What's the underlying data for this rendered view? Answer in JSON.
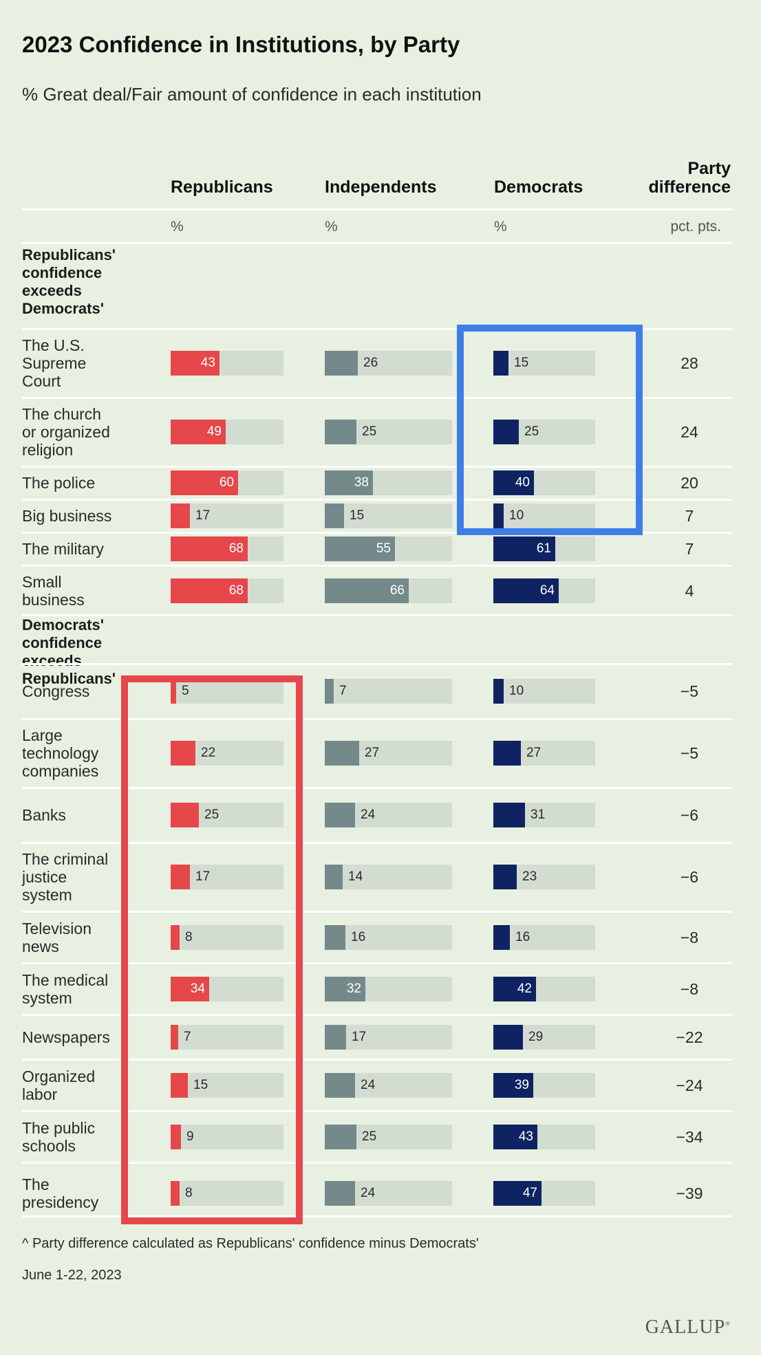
{
  "colors": {
    "background": "#e8f0e2",
    "republicans": "#e5474b",
    "independents": "#74898a",
    "democrats": "#0f2362",
    "track": "#d3dcd1",
    "highlight_blue": "#3f7de8",
    "highlight_red": "#e5474b"
  },
  "chart_data": {
    "type": "bar",
    "title": "2023 Confidence in Institutions, by Party",
    "subtitle": "% Great deal/Fair amount of confidence in each institution",
    "columns": [
      {
        "label": "Republicans",
        "unit": "%"
      },
      {
        "label": "Independents",
        "unit": "%"
      },
      {
        "label": "Democrats",
        "unit": "%"
      },
      {
        "label": "Party difference",
        "unit": "pct. pts."
      }
    ],
    "xlim": [
      0,
      100
    ],
    "sections": [
      {
        "heading": "Republicans'\nconfidence\nexceeds\nDemocrats'",
        "rows": [
          {
            "label": "The U.S.\nSupreme\nCourt",
            "republicans": 43,
            "independents": 26,
            "democrats": 15,
            "difference": "28"
          },
          {
            "label": "The church\nor organized\nreligion",
            "republicans": 49,
            "independents": 25,
            "democrats": 25,
            "difference": "24"
          },
          {
            "label": "The police",
            "republicans": 60,
            "independents": 38,
            "democrats": 40,
            "difference": "20"
          },
          {
            "label": "Big business",
            "republicans": 17,
            "independents": 15,
            "democrats": 10,
            "difference": "7"
          },
          {
            "label": "The military",
            "republicans": 68,
            "independents": 55,
            "democrats": 61,
            "difference": "7"
          },
          {
            "label": "Small\nbusiness",
            "republicans": 68,
            "independents": 66,
            "democrats": 64,
            "difference": "4"
          }
        ]
      },
      {
        "heading": "Democrats'\nconfidence\nexceeds\nRepublicans'",
        "rows": [
          {
            "label": "Congress",
            "republicans": 5,
            "independents": 7,
            "democrats": 10,
            "difference": "−5"
          },
          {
            "label": "Large\ntechnology\ncompanies",
            "republicans": 22,
            "independents": 27,
            "democrats": 27,
            "difference": "−5"
          },
          {
            "label": "Banks",
            "republicans": 25,
            "independents": 24,
            "democrats": 31,
            "difference": "−6"
          },
          {
            "label": "The criminal\njustice\nsystem",
            "republicans": 17,
            "independents": 14,
            "democrats": 23,
            "difference": "−6"
          },
          {
            "label": "Television\nnews",
            "republicans": 8,
            "independents": 16,
            "democrats": 16,
            "difference": "−8"
          },
          {
            "label": "The medical\nsystem",
            "republicans": 34,
            "independents": 32,
            "democrats": 42,
            "difference": "−8"
          },
          {
            "label": "Newspapers",
            "republicans": 7,
            "independents": 17,
            "democrats": 29,
            "difference": "−22"
          },
          {
            "label": "Organized\nlabor",
            "republicans": 15,
            "independents": 24,
            "democrats": 39,
            "difference": "−24"
          },
          {
            "label": "The public\nschools",
            "republicans": 9,
            "independents": 25,
            "democrats": 43,
            "difference": "−34"
          },
          {
            "label": "The\npresidency",
            "republicans": 8,
            "independents": 24,
            "democrats": 47,
            "difference": "−39"
          }
        ]
      }
    ]
  },
  "footnote": "^ Party difference calculated as Republicans' confidence minus Democrats'",
  "date": "June 1-22, 2023",
  "logo_text": "GALLUP"
}
